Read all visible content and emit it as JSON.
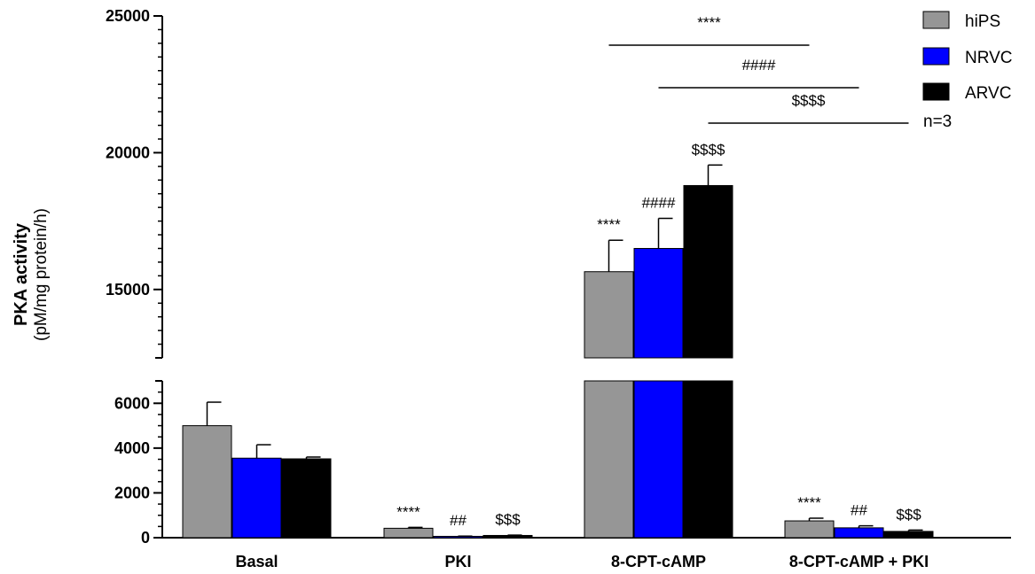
{
  "chart_data": {
    "type": "bar",
    "ylabel": "PKA activity",
    "ylabel_unit": "(pM/mg protein/h)",
    "categories": [
      "Basal",
      "PKI",
      "8-CPT-cAMP",
      "8-CPT-cAMP + PKI"
    ],
    "series": [
      {
        "name": "hiPS",
        "color": "#969696",
        "values": [
          5000,
          420,
          15650,
          750
        ],
        "errors": [
          1050,
          40,
          1150,
          120
        ]
      },
      {
        "name": "NRVC",
        "color": "#0000ff",
        "values": [
          3550,
          60,
          16500,
          440
        ],
        "errors": [
          600,
          10,
          1100,
          90
        ]
      },
      {
        "name": "ARVC",
        "color": "#000000",
        "values": [
          3520,
          100,
          18800,
          280
        ],
        "errors": [
          80,
          15,
          750,
          60
        ]
      }
    ],
    "y_axis_segments": [
      {
        "range": [
          0,
          7000
        ],
        "ticks": [
          "0",
          "2000",
          "4000",
          "6000"
        ]
      },
      {
        "range": [
          12500,
          25000
        ],
        "ticks": [
          "15000",
          "20000",
          "25000"
        ]
      }
    ],
    "bar_annotations": [
      [
        "",
        "",
        ""
      ],
      [
        "****",
        "##",
        "$$$"
      ],
      [
        "****",
        "####",
        "$$$$"
      ],
      [
        "****",
        "##",
        "$$$"
      ]
    ],
    "comparison_lines": [
      {
        "label": "****",
        "from_category": 2,
        "from_series": 0,
        "to_category": 3,
        "to_series": 0
      },
      {
        "label": "####",
        "from_category": 2,
        "from_series": 1,
        "to_category": 3,
        "to_series": 1
      },
      {
        "label": "$$$$",
        "from_category": 2,
        "from_series": 2,
        "to_category": 3,
        "to_series": 2
      }
    ],
    "legend_position": "top-right",
    "note": "n=3",
    "grid": false
  }
}
